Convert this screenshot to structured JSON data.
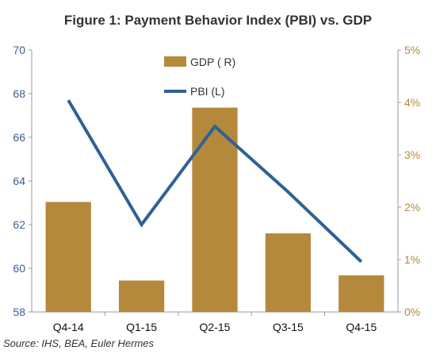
{
  "chart_data": {
    "type": "bar",
    "title": "Figure 1: Payment Behavior Index (PBI) vs. GDP",
    "categories": [
      "Q4-14",
      "Q1-15",
      "Q2-15",
      "Q3-15",
      "Q4-15"
    ],
    "series": [
      {
        "name": "GDP ( R)",
        "type": "bar",
        "axis": "right",
        "values": [
          2.1,
          0.6,
          3.9,
          1.5,
          0.7
        ]
      },
      {
        "name": "PBI (L)",
        "type": "line",
        "axis": "left",
        "values": [
          67.7,
          62.0,
          66.5,
          63.5,
          60.3
        ]
      }
    ],
    "y_left": {
      "ylim": [
        58,
        70
      ],
      "ticks": [
        "58",
        "60",
        "62",
        "64",
        "66",
        "68",
        "70"
      ]
    },
    "y_right": {
      "ylim": [
        0,
        5
      ],
      "ticks": [
        "0%",
        "1%",
        "2%",
        "3%",
        "4%",
        "5%"
      ]
    },
    "legend_placement": "top-center",
    "grid": false,
    "colors": {
      "bar": "#b5893c",
      "line": "#2f6196",
      "left_axis": "#3a5f8f",
      "right_axis": "#b5893c"
    }
  },
  "source": "Source: IHS, BEA, Euler Hermes"
}
